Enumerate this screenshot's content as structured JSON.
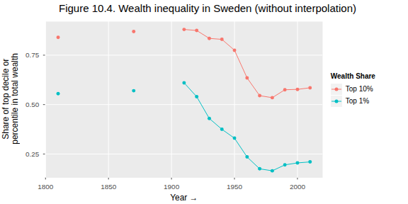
{
  "chart_data": {
    "type": "line",
    "title": "Figure 10.4. Wealth inequality in Sweden (without interpolation)",
    "xlabel": "Year",
    "ylabel": "Share of top decile or\npercentile in total wealth",
    "x": [
      1810,
      1850,
      1870,
      1900,
      1910,
      1920,
      1930,
      1940,
      1950,
      1960,
      1970,
      1980,
      1990,
      2000,
      2010
    ],
    "series": [
      {
        "name": "Top 10%",
        "color": "#F8766D",
        "marker": "circle",
        "line_style": "solid",
        "values": [
          0.84,
          null,
          0.87,
          null,
          0.88,
          0.875,
          0.835,
          0.83,
          0.775,
          0.635,
          0.545,
          0.535,
          0.575,
          0.577,
          0.585
        ]
      },
      {
        "name": "Top 1%",
        "color": "#00BFC4",
        "marker": "circle",
        "line_style": "solid",
        "values": [
          0.555,
          null,
          0.57,
          null,
          0.61,
          0.54,
          0.43,
          0.375,
          0.33,
          0.235,
          0.175,
          0.165,
          0.195,
          0.205,
          0.21
        ]
      }
    ],
    "xlim": [
      1800,
      2020
    ],
    "xticks": [
      1800,
      1850,
      1900,
      1950,
      2000
    ],
    "ylim": [
      0.13,
      0.92
    ],
    "yticks": [
      0.25,
      {
        "value": 0.5,
        "label": "0.50"
      },
      0.75
    ],
    "grid": true,
    "legend": "right",
    "legend_title": "Wealth Share"
  }
}
